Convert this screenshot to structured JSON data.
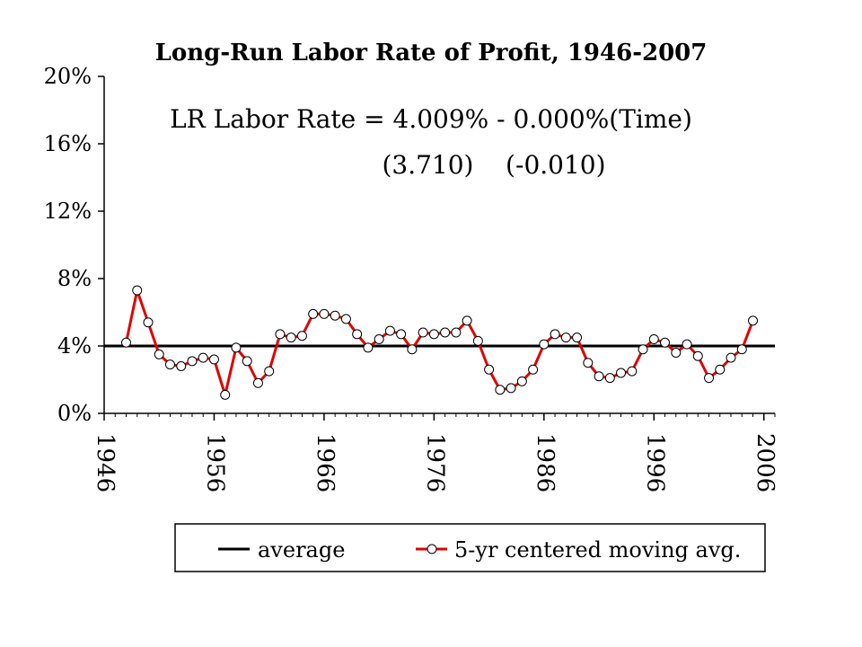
{
  "chart_data": {
    "type": "line",
    "title": "Long-Run Labor Rate of Profit, 1946-2007",
    "annotation_equation": "LR Labor Rate = 4.009% - 0.000%(Time)",
    "annotation_tstats": "(3.710)    (-0.010)",
    "xlabel": "",
    "ylabel": "",
    "xlim": [
      1946,
      2007
    ],
    "ylim": [
      0,
      20
    ],
    "x_ticks": [
      "1946",
      "1956",
      "1966",
      "1976",
      "1986",
      "1996",
      "2006"
    ],
    "x_tick_values": [
      1946,
      1956,
      1966,
      1976,
      1986,
      1996,
      2006
    ],
    "y_ticks": [
      "0%",
      "4%",
      "8%",
      "12%",
      "16%",
      "20%"
    ],
    "y_tick_values": [
      0,
      4,
      8,
      12,
      16,
      20
    ],
    "grid": false,
    "legend_position": "bottom",
    "series": [
      {
        "name": "average",
        "color": "#000000",
        "marker": "none",
        "x": [
          1946,
          2007
        ],
        "values": [
          4.0,
          4.0
        ]
      },
      {
        "name": "5-yr centered moving avg.",
        "color": "#e00000",
        "marker": "circle",
        "x": [
          1948,
          1949,
          1950,
          1951,
          1952,
          1953,
          1954,
          1955,
          1956,
          1957,
          1958,
          1959,
          1960,
          1961,
          1962,
          1963,
          1964,
          1965,
          1966,
          1967,
          1968,
          1969,
          1970,
          1971,
          1972,
          1973,
          1974,
          1975,
          1976,
          1977,
          1978,
          1979,
          1980,
          1981,
          1982,
          1983,
          1984,
          1985,
          1986,
          1987,
          1988,
          1989,
          1990,
          1991,
          1992,
          1993,
          1994,
          1995,
          1996,
          1997,
          1998,
          1999,
          2000,
          2001,
          2002,
          2003,
          2004,
          2005
        ],
        "values": [
          4.2,
          7.3,
          5.4,
          3.5,
          2.9,
          2.8,
          3.1,
          3.3,
          3.2,
          1.1,
          3.9,
          3.1,
          1.8,
          2.5,
          4.7,
          4.5,
          4.6,
          5.9,
          5.9,
          5.8,
          5.6,
          4.7,
          3.9,
          4.4,
          4.9,
          4.7,
          3.8,
          4.8,
          4.7,
          4.8,
          4.8,
          5.5,
          4.3,
          2.6,
          1.4,
          1.5,
          1.9,
          2.6,
          4.1,
          4.7,
          4.5,
          4.5,
          3.0,
          2.2,
          2.1,
          2.4,
          2.5,
          3.8,
          4.4,
          4.2,
          3.6,
          4.1,
          3.4,
          2.1,
          2.6,
          3.3,
          3.8,
          5.5
        ]
      }
    ]
  }
}
